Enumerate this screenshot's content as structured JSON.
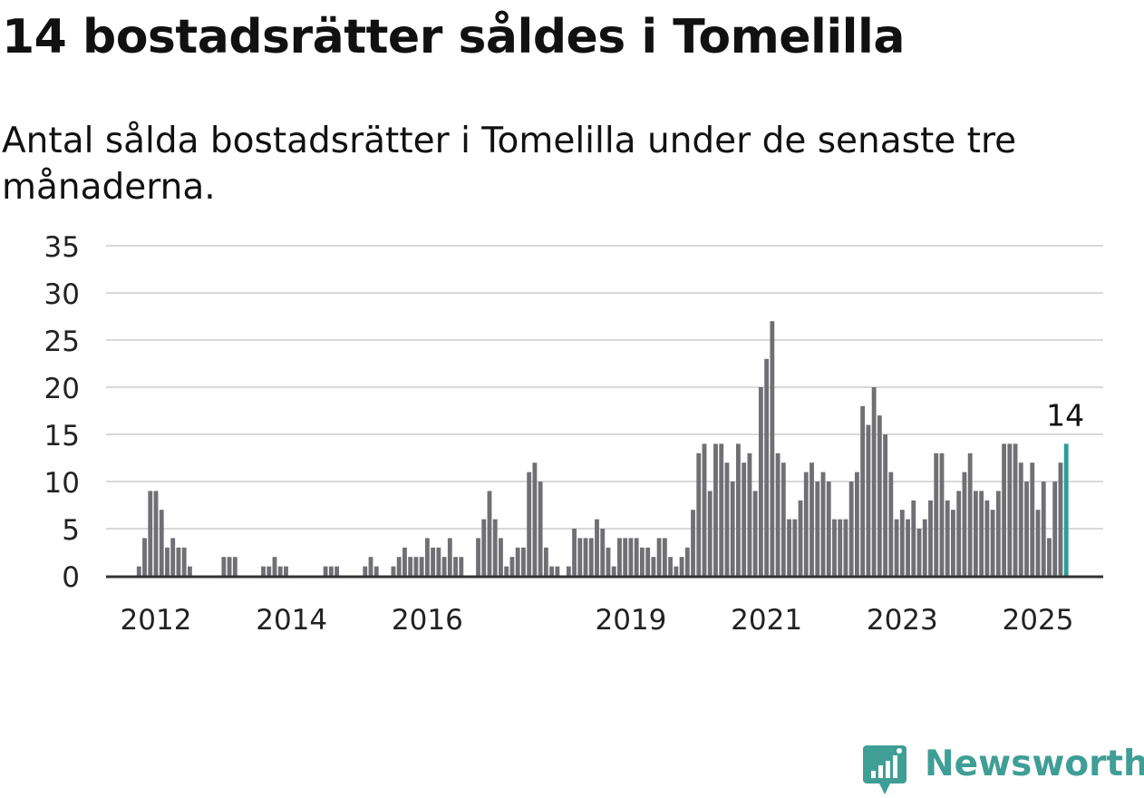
{
  "title": "14 bostadsrätter såldes i Tomelilla",
  "subtitle": "Antal sålda bostadsrätter i Tomelilla under de senaste tre månaderna.",
  "brand": {
    "name": "Newsworthy",
    "color": "#3f9e96",
    "icon": "newsworthy-chart-bubble-icon"
  },
  "colors": {
    "bar": "#707074",
    "highlight": "#2a9d99",
    "grid": "#d9d9d9",
    "axis": "#333333"
  },
  "chart_data": {
    "type": "bar",
    "title": "",
    "xlabel": "",
    "ylabel": "",
    "ylim": [
      0,
      35
    ],
    "yticks": [
      0,
      5,
      10,
      15,
      20,
      25,
      30,
      35
    ],
    "xticks": [
      "2012",
      "2014",
      "2016",
      "2019",
      "2021",
      "2023",
      "2025"
    ],
    "grid": true,
    "start_month": "2011-10",
    "series": [
      {
        "values": [
          1,
          4,
          9,
          9,
          7,
          3,
          4,
          3,
          3,
          1,
          0,
          0,
          0,
          0,
          0,
          2,
          2,
          2,
          0,
          0,
          0,
          0,
          1,
          1,
          2,
          1,
          1,
          0,
          0,
          0,
          0,
          0,
          0,
          1,
          1,
          1,
          0,
          0,
          0,
          0,
          1,
          2,
          1,
          0,
          0,
          1,
          2,
          3,
          2,
          2,
          2,
          4,
          3,
          3,
          2,
          4,
          2,
          2,
          0,
          0,
          4,
          6,
          9,
          6,
          4,
          1,
          2,
          3,
          3,
          11,
          12,
          10,
          3,
          1,
          1,
          0,
          1,
          5,
          4,
          4,
          4,
          6,
          5,
          3,
          1,
          4,
          4,
          4,
          4,
          3,
          3,
          2,
          4,
          4,
          2,
          1,
          2,
          3,
          7,
          13,
          14,
          9,
          14,
          14,
          12,
          10,
          14,
          12,
          13,
          9,
          20,
          23,
          27,
          13,
          12,
          6,
          6,
          8,
          11,
          12,
          10,
          11,
          10,
          6,
          6,
          6,
          10,
          11,
          18,
          16,
          20,
          17,
          15,
          11,
          6,
          7,
          6,
          8,
          5,
          6,
          8,
          13,
          13,
          8,
          7,
          9,
          11,
          13,
          9,
          9,
          8,
          7,
          9,
          14,
          14,
          14,
          12,
          10,
          12,
          7,
          10,
          4,
          10,
          12,
          14
        ]
      }
    ],
    "highlight": {
      "label": "14",
      "value": 14
    }
  }
}
